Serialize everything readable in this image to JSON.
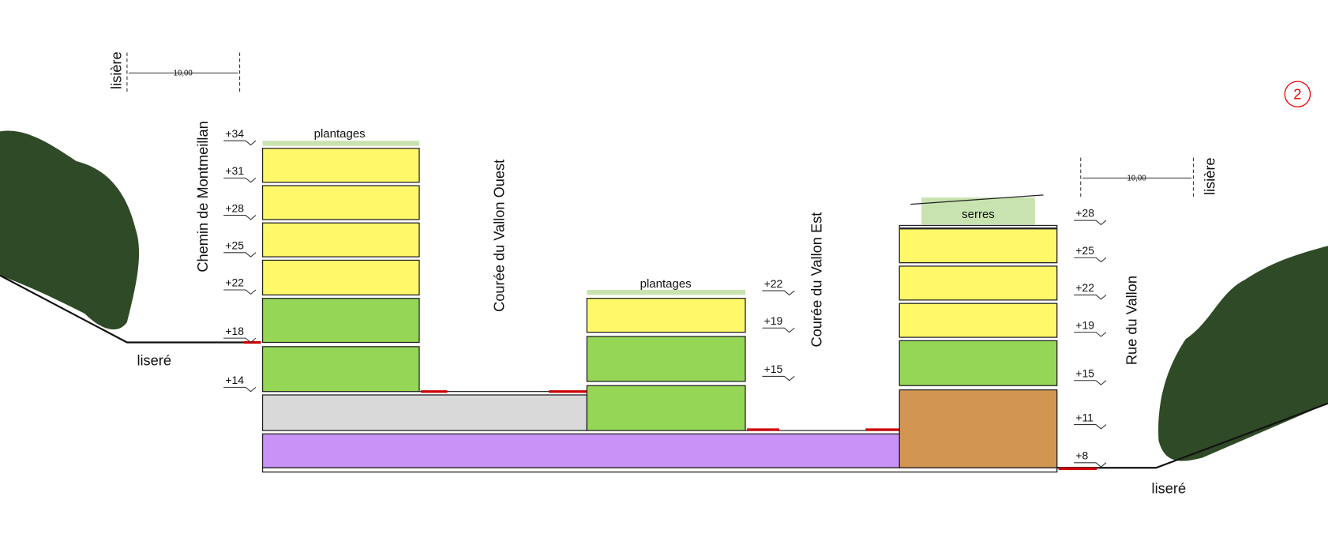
{
  "marker": "2",
  "left_edge": {
    "label": "lisière",
    "dimension": "10,00",
    "street": "Chemin de Montmeillan",
    "edge": "liseré"
  },
  "right_edge": {
    "label": "lisière",
    "dimension": "10,00",
    "street": "Rue du Vallon",
    "edge": "liseré"
  },
  "courtyards": [
    "Courée du Vallon Ouest",
    "Courée du Vallon Est"
  ],
  "buildings": [
    {
      "roof": "plantages",
      "levels": [
        "+34",
        "+31",
        "+28",
        "+25",
        "+22",
        "+18",
        "+14"
      ]
    },
    {
      "roof": "plantages",
      "levels": [
        "+22",
        "+19",
        "+15"
      ]
    },
    {
      "roof": "serres",
      "levels": [
        "+28",
        "+25",
        "+22",
        "+19",
        "+15",
        "+11",
        "+8"
      ]
    }
  ]
}
